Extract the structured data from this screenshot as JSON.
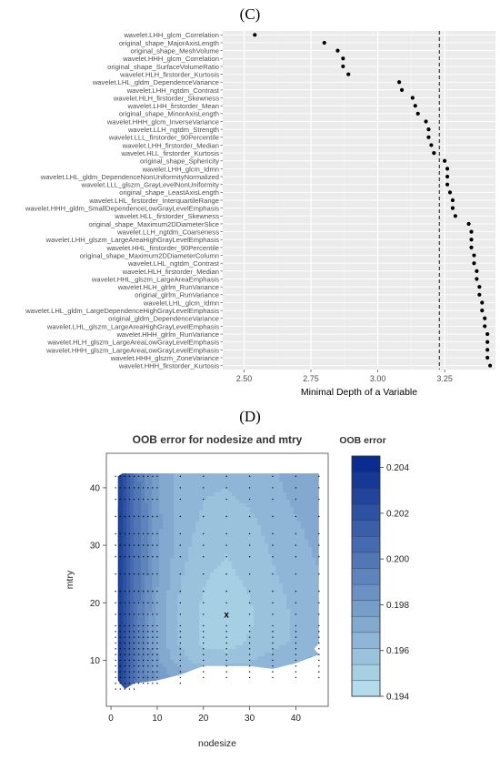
{
  "panel_c": {
    "letter": "(C)"
  },
  "panel_d": {
    "letter": "(D)"
  },
  "chart_data": [
    {
      "type": "scatter",
      "title": "",
      "xlabel": "Minimal Depth of a Variable",
      "ylabel": "",
      "xlim": [
        2.42,
        3.44
      ],
      "xticks": [
        "2.50",
        "2.75",
        "3.00",
        "3.25"
      ],
      "xtick_values": [
        2.5,
        2.75,
        3.0,
        3.25
      ],
      "threshold": 3.23,
      "grid": true,
      "point_color": "#000000",
      "panel_bg": "#ebebeb",
      "categories": [
        "wavelet.LHH_glcm_Correlation",
        "original_shape_MajorAxisLength",
        "original_shape_MeshVolume",
        "wavelet.HHH_glcm_Correlation",
        "original_shape_SurfaceVolumeRatio",
        "wavelet.HLH_firstorder_Kurtosis",
        "wavelet.LHL_gldm_DependenceVariance",
        "wavelet.LHH_ngtdm_Contrast",
        "wavelet.HLH_firstorder_Skewness",
        "wavelet.LHH_firstorder_Mean",
        "original_shape_MinorAxisLength",
        "wavelet.HHH_glcm_InverseVariance",
        "wavelet.LLH_ngtdm_Strength",
        "wavelet.LLL_firstorder_90Percentile",
        "wavelet.LHH_firstorder_Median",
        "wavelet.HLL_firstorder_Kurtosis",
        "original_shape_Sphericity",
        "wavelet.LHH_glcm_Idmn",
        "wavelet.LHL_gldm_DependenceNonUniformityNormalized",
        "wavelet.LLL_glszm_GrayLevelNonUniformity",
        "original_shape_LeastAxisLength",
        "wavelet.LHL_firstorder_InterquartileRange",
        "wavelet.HHH_gldm_SmallDependenceLowGrayLevelEmphasis",
        "wavelet.HLL_firstorder_Skewness",
        "original_shape_Maximum2DDiameterSlice",
        "wavelet.LLH_ngtdm_Coarseness",
        "wavelet.LHH_glszm_LargeAreaHighGrayLevelEmphasis",
        "wavelet.HHL_firstorder_90Percentile",
        "original_shape_Maximum2DDiameterColumn",
        "wavelet.LHL_ngtdm_Contrast",
        "wavelet.HLH_firstorder_Median",
        "wavelet.HHL_glszm_LargeAreaEmphasis",
        "wavelet.HLH_glrlm_RunVariance",
        "original_glrlm_RunVariance",
        "wavelet.LHL_glcm_Idmn",
        "wavelet.LHL_gldm_LargeDependenceHighGrayLevelEmphasis",
        "original_gldm_DependenceVariance",
        "wavelet.LHL_glszm_LargeAreaHighGrayLevelEmphasis",
        "wavelet.HHH_glrlm_RunVariance",
        "wavelet.HLH_glszm_LargeAreaLowGrayLevelEmphasis",
        "wavelet.HHH_glszm_LargeAreaLowGrayLevelEmphasis",
        "wavelet.HHH_glszm_ZoneVariance",
        "wavelet.HHH_firstorder_Kurtosis"
      ],
      "values": [
        2.54,
        2.8,
        2.85,
        2.87,
        2.87,
        2.89,
        3.08,
        3.09,
        3.13,
        3.14,
        3.15,
        3.18,
        3.19,
        3.19,
        3.2,
        3.21,
        3.25,
        3.26,
        3.26,
        3.26,
        3.27,
        3.28,
        3.28,
        3.29,
        3.34,
        3.35,
        3.35,
        3.35,
        3.36,
        3.36,
        3.37,
        3.37,
        3.38,
        3.38,
        3.39,
        3.39,
        3.4,
        3.4,
        3.41,
        3.41,
        3.41,
        3.41,
        3.42
      ]
    },
    {
      "type": "heatmap",
      "title": "OOB error for nodesize and mtry",
      "xlabel": "nodesize",
      "ylabel": "mtry",
      "xlim": [
        -1,
        47
      ],
      "ylim": [
        2,
        46
      ],
      "xticks": [
        0,
        10,
        20,
        30,
        40
      ],
      "yticks": [
        10,
        20,
        30,
        40
      ],
      "legend": {
        "title": "OOB error",
        "placement": "right",
        "range": [
          0.194,
          0.2045
        ],
        "ticks": [
          "0.194",
          "0.196",
          "0.198",
          "0.200",
          "0.202",
          "0.204"
        ],
        "tick_values": [
          0.194,
          0.196,
          0.198,
          0.2,
          0.202,
          0.204
        ],
        "levels": 15,
        "color_low": "#b3dbe9",
        "color_high": "#0a2c8e"
      },
      "minimum_marker": {
        "label": "x",
        "nodesize": 25,
        "mtry": 18
      },
      "x": [
        2,
        5,
        10,
        15,
        20,
        25,
        30,
        35,
        40,
        45
      ],
      "y": [
        7,
        10,
        13,
        18,
        25,
        30,
        35,
        42
      ],
      "z": [
        [
          0.2035,
          0.2,
          0.198,
          0.197,
          0.1966,
          0.1968,
          0.1968,
          0.197,
          0.1972,
          0.1974
        ],
        [
          0.2035,
          0.2,
          0.1975,
          0.1962,
          0.1955,
          0.1955,
          0.1958,
          0.1962,
          0.1965,
          0.1968
        ],
        [
          0.2035,
          0.2,
          0.1972,
          0.1958,
          0.195,
          0.1948,
          0.1952,
          0.1956,
          0.196,
          0.1965
        ],
        [
          0.2035,
          0.2002,
          0.1972,
          0.1956,
          0.195,
          0.1945,
          0.195,
          0.1955,
          0.196,
          0.1965
        ],
        [
          0.2035,
          0.2005,
          0.1975,
          0.196,
          0.1952,
          0.195,
          0.1953,
          0.1958,
          0.1962,
          0.1966
        ],
        [
          0.2035,
          0.2005,
          0.1976,
          0.1962,
          0.1955,
          0.1952,
          0.1955,
          0.196,
          0.1964,
          0.1968
        ],
        [
          0.2035,
          0.2005,
          0.1976,
          0.1963,
          0.1958,
          0.1956,
          0.1958,
          0.1962,
          0.1966,
          0.197
        ],
        [
          0.203,
          0.2002,
          0.1975,
          0.1963,
          0.196,
          0.196,
          0.1962,
          0.1965,
          0.197,
          0.1972
        ]
      ]
    }
  ]
}
